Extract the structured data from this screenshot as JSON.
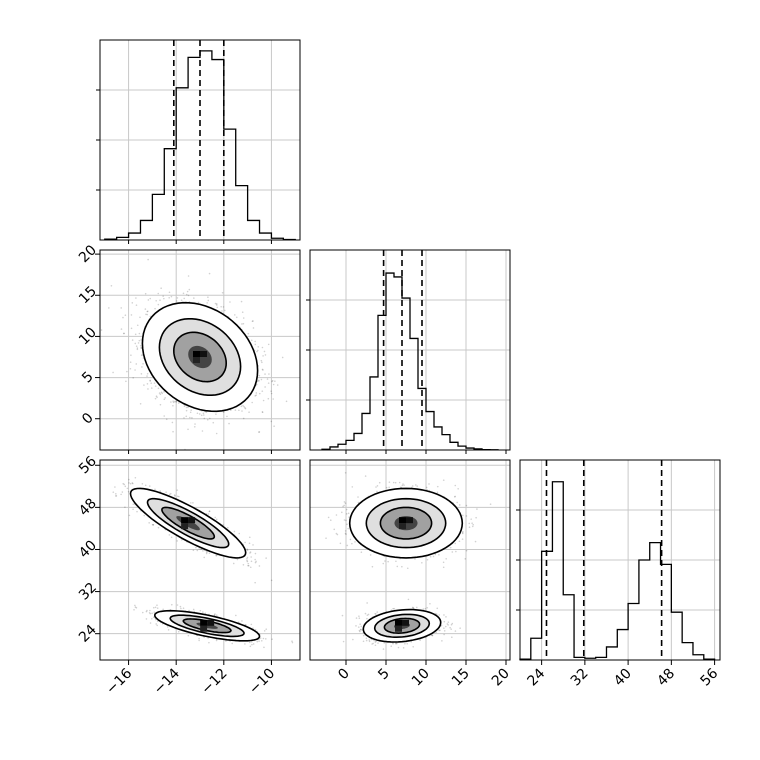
{
  "chart_data": [
    {
      "type": "histogram",
      "position": "row0-col0",
      "xlim": [
        -17.2,
        -8.8
      ],
      "quantiles": [
        -14.1,
        -13.0,
        -12.0
      ],
      "bins": [
        -17.0,
        -16.5,
        -16.0,
        -15.5,
        -15.0,
        -14.5,
        -14.0,
        -13.5,
        -13.0,
        -12.5,
        -12.0,
        -11.5,
        -11.0,
        -10.5,
        -10.0,
        -9.5
      ],
      "counts": [
        0.2,
        0.6,
        1.6,
        4.5,
        10.5,
        21,
        35,
        42,
        43.5,
        41.5,
        25.5,
        12.5,
        4.5,
        1.6,
        0.4,
        0.1
      ],
      "ylim": [
        0,
        46
      ]
    },
    {
      "type": "histogram",
      "position": "row1-col1",
      "xlim": [
        -4.5,
        20.5
      ],
      "quantiles": [
        4.7,
        7.0,
        9.5
      ],
      "bins": [
        -3,
        -2,
        -1,
        0,
        1,
        2,
        3,
        4,
        5,
        6,
        7,
        8,
        9,
        10,
        11,
        12,
        13,
        14,
        15,
        16,
        17,
        18,
        19
      ],
      "counts": [
        0.2,
        0.8,
        1.5,
        2.5,
        4.3,
        9.5,
        19,
        35,
        46,
        45,
        39.5,
        29,
        16,
        10,
        6,
        4,
        2,
        1,
        0.5,
        0.3,
        0.1,
        0.05
      ],
      "ylim": [
        0,
        52
      ]
    },
    {
      "type": "histogram",
      "position": "row2-col2",
      "xlim": [
        20,
        57
      ],
      "quantiles": [
        24.9,
        31.8,
        46.2
      ],
      "bins": [
        20,
        22,
        24,
        26,
        28,
        30,
        32,
        34,
        36,
        38,
        40,
        42,
        44,
        46,
        48,
        50,
        52,
        54,
        56
      ],
      "counts": [
        0.1,
        2.5,
        12.5,
        20.5,
        7.5,
        0.3,
        0.2,
        0.3,
        1.5,
        3.5,
        6.5,
        11.5,
        13.5,
        11,
        5.5,
        2,
        0.6,
        0.1
      ],
      "ylim": [
        0,
        23
      ]
    },
    {
      "type": "heatmap",
      "position": "row1-col0",
      "xlim": [
        -17.2,
        -8.8
      ],
      "ylim": [
        -3.8,
        20.5
      ],
      "blobs": [
        {
          "cx": -13.0,
          "cy": 7.5,
          "sx": 1.1,
          "sy": 3.0,
          "rho": -0.25,
          "weight": 1
        }
      ]
    },
    {
      "type": "heatmap",
      "position": "row2-col0",
      "xlim": [
        -17.2,
        -8.8
      ],
      "ylim": [
        19,
        57
      ],
      "blobs": [
        {
          "cx": -13.5,
          "cy": 45,
          "sx": 1.1,
          "sy": 3.0,
          "rho": -0.85,
          "weight": 0.5
        },
        {
          "cx": -12.7,
          "cy": 25.5,
          "sx": 1.0,
          "sy": 1.3,
          "rho": -0.7,
          "weight": 0.5
        }
      ]
    },
    {
      "type": "heatmap",
      "position": "row2-col1",
      "xlim": [
        -4.5,
        20.5
      ],
      "ylim": [
        19,
        57
      ],
      "blobs": [
        {
          "cx": 7.5,
          "cy": 45,
          "sx": 3.2,
          "sy": 3.0,
          "rho": 0.0,
          "weight": 0.5
        },
        {
          "cx": 7.0,
          "cy": 25.5,
          "sx": 2.2,
          "sy": 1.4,
          "rho": 0.2,
          "weight": 0.5
        }
      ]
    }
  ],
  "axes": {
    "xticks_col0": [
      "−16",
      "−14",
      "−12",
      "−10"
    ],
    "xticks_col1": [
      "0",
      "5",
      "10",
      "15",
      "20"
    ],
    "xticks_col2": [
      "24",
      "32",
      "40",
      "48",
      "56"
    ],
    "yticks_row1": [
      "0",
      "5",
      "10",
      "15",
      "20"
    ],
    "yticks_row2": [
      "24",
      "32",
      "40",
      "48",
      "56"
    ]
  }
}
